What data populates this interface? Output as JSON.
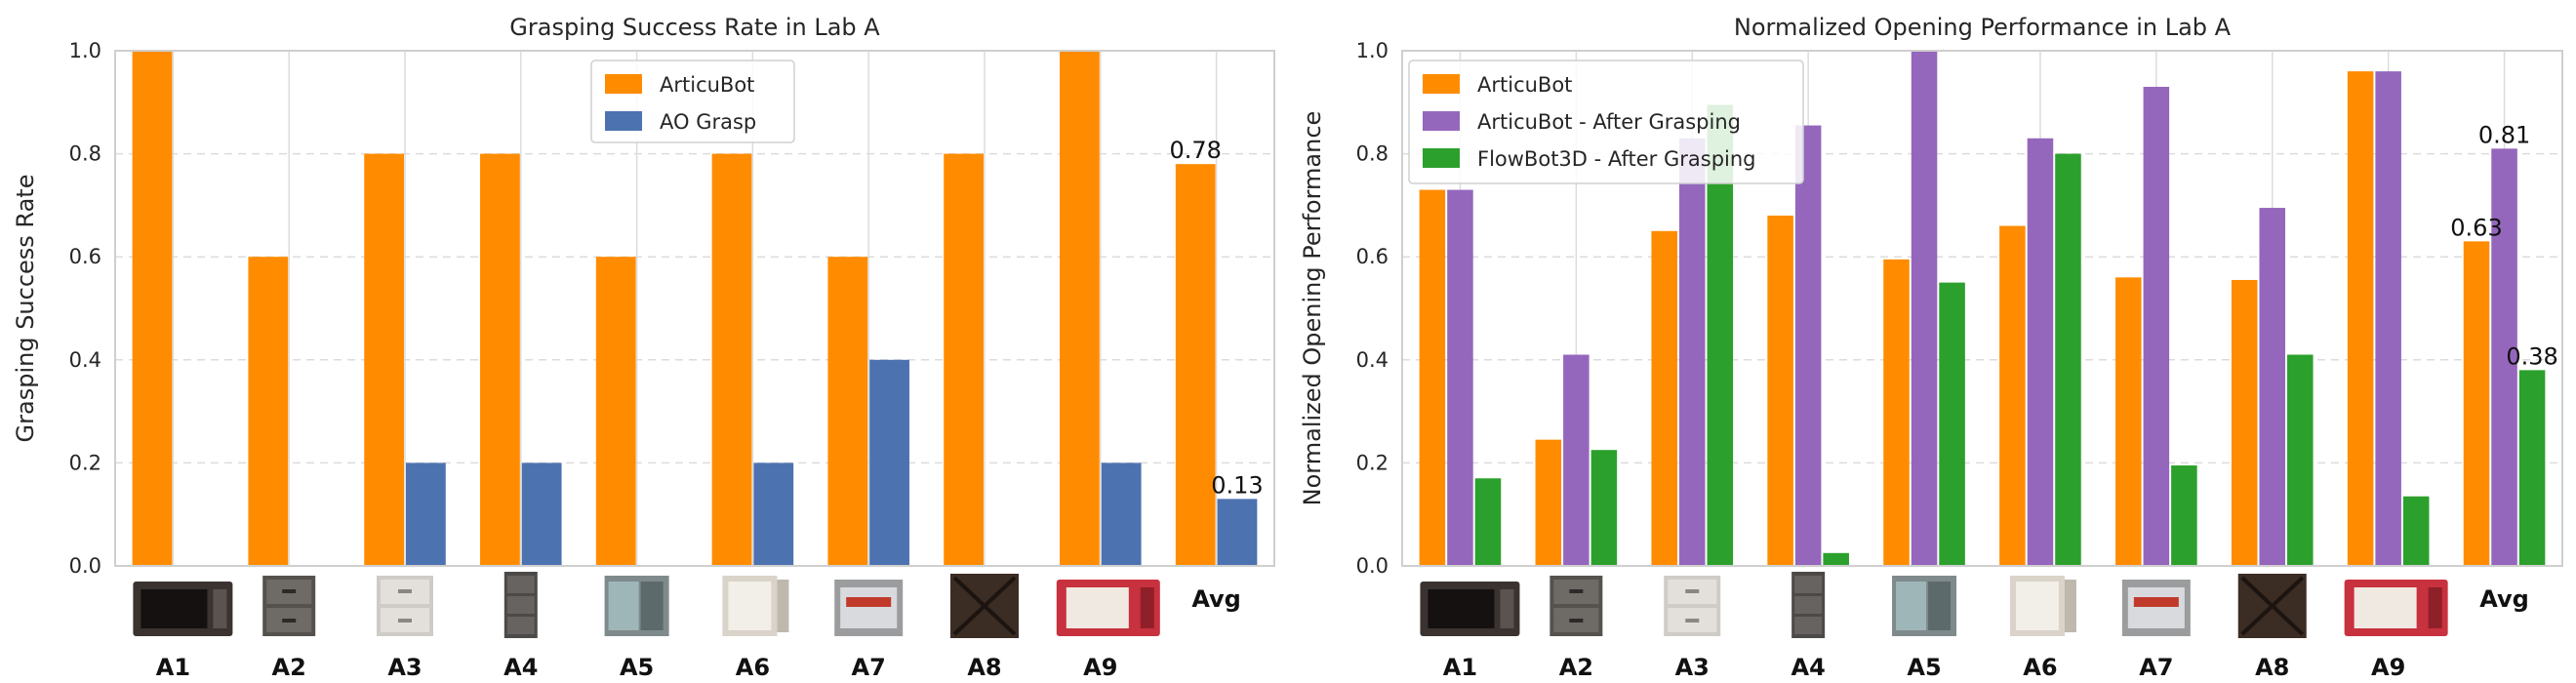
{
  "chart_data": [
    {
      "type": "bar",
      "title": "Grasping Success Rate in Lab A",
      "xlabel": "",
      "ylabel": "Grasping Success Rate",
      "ylim": [
        0,
        1
      ],
      "yticks": [
        "0.0",
        "0.2",
        "0.4",
        "0.6",
        "0.8",
        "1.0"
      ],
      "grid": "horizontal dashed + vertical solid",
      "legend": "top-center",
      "categories": [
        "A1",
        "A2",
        "A3",
        "A4",
        "A5",
        "A6",
        "A7",
        "A8",
        "A9",
        "Avg"
      ],
      "series": [
        {
          "name": "ArticuBot",
          "color": "#ff8c00",
          "values": [
            1.0,
            0.6,
            0.8,
            0.8,
            0.6,
            0.8,
            0.6,
            0.8,
            1.0,
            0.78
          ]
        },
        {
          "name": "AO Grasp",
          "color": "#4c72b0",
          "values": [
            0.0,
            0.0,
            0.2,
            0.2,
            0.0,
            0.2,
            0.4,
            0.0,
            0.2,
            0.13
          ]
        }
      ],
      "data_labels": [
        {
          "category": "Avg",
          "series": "ArticuBot",
          "text": "0.78"
        },
        {
          "category": "Avg",
          "series": "AO Grasp",
          "text": "0.13"
        }
      ],
      "category_images": [
        "microwave-icon",
        "drawer-icon",
        "cabinet-icon",
        "tall-cabinet-icon",
        "fridge-icon",
        "open-cabinet-icon",
        "oven-icon",
        "dark-cabinet-icon",
        "red-microwave-icon"
      ]
    },
    {
      "type": "bar",
      "title": "Normalized Opening Performance in Lab A",
      "xlabel": "",
      "ylabel": "Normalized Opening Performance",
      "ylim": [
        0,
        1
      ],
      "yticks": [
        "0.0",
        "0.2",
        "0.4",
        "0.6",
        "0.8",
        "1.0"
      ],
      "grid": "horizontal dashed + vertical solid",
      "legend": "top-left",
      "categories": [
        "A1",
        "A2",
        "A3",
        "A4",
        "A5",
        "A6",
        "A7",
        "A8",
        "A9",
        "Avg"
      ],
      "series": [
        {
          "name": "ArticuBot",
          "color": "#ff8c00",
          "values": [
            0.73,
            0.245,
            0.65,
            0.68,
            0.595,
            0.66,
            0.56,
            0.555,
            0.96,
            0.63
          ]
        },
        {
          "name": "ArticuBot - After Grasping",
          "color": "#9467bd",
          "values": [
            0.73,
            0.41,
            0.83,
            0.855,
            1.0,
            0.83,
            0.93,
            0.695,
            0.96,
            0.81
          ]
        },
        {
          "name": "FlowBot3D - After Grasping",
          "color": "#2ca02c",
          "values": [
            0.17,
            0.225,
            0.895,
            0.025,
            0.55,
            0.8,
            0.195,
            0.41,
            0.135,
            0.38
          ]
        }
      ],
      "data_labels": [
        {
          "category": "Avg",
          "series": "ArticuBot",
          "text": "0.63"
        },
        {
          "category": "Avg",
          "series": "ArticuBot - After Grasping",
          "text": "0.81"
        },
        {
          "category": "Avg",
          "series": "FlowBot3D - After Grasping",
          "text": "0.38"
        }
      ],
      "category_images": [
        "microwave-icon",
        "drawer-icon",
        "cabinet-icon",
        "tall-cabinet-icon",
        "fridge-icon",
        "open-cabinet-icon",
        "oven-icon",
        "dark-cabinet-icon",
        "red-microwave-icon"
      ]
    }
  ]
}
